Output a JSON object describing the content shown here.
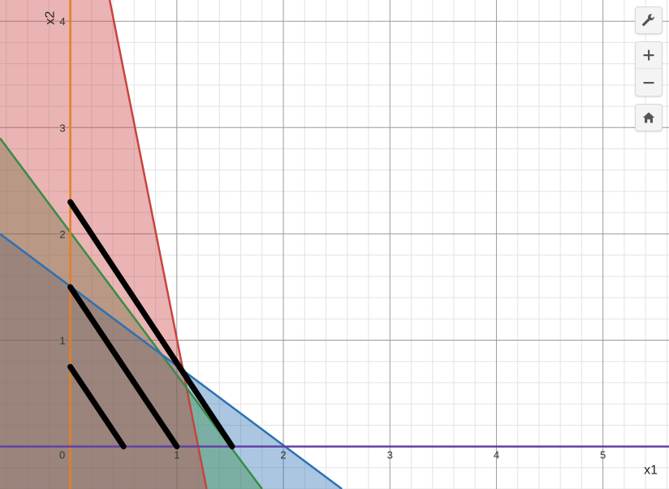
{
  "graph": {
    "x_axis_label": "x1",
    "y_axis_label": "x2",
    "x_range": [
      -0.66,
      5.62
    ],
    "y_range": [
      -0.4,
      4.2
    ],
    "x_ticks": [
      {
        "value": 0,
        "label": "0"
      },
      {
        "value": 1,
        "label": "1"
      },
      {
        "value": 2,
        "label": "2"
      },
      {
        "value": 3,
        "label": "3"
      },
      {
        "value": 4,
        "label": "4"
      },
      {
        "value": 5,
        "label": "5"
      }
    ],
    "y_ticks": [
      {
        "value": 1,
        "label": "1"
      },
      {
        "value": 2,
        "label": "2"
      },
      {
        "value": 3,
        "label": "3"
      },
      {
        "value": 4,
        "label": "4"
      }
    ],
    "minor_grid_step": 0.2,
    "regions": [
      {
        "id": "blue",
        "color": "#2d70b3",
        "points": [
          [
            -0.66,
            2.0
          ],
          [
            2.55,
            -0.4
          ],
          [
            -0.66,
            -0.4
          ]
        ]
      },
      {
        "id": "green",
        "color": "#388c46",
        "points": [
          [
            -0.66,
            2.9
          ],
          [
            1.8,
            -0.4
          ],
          [
            -0.66,
            -0.4
          ]
        ]
      },
      {
        "id": "red",
        "color": "#c74440",
        "points": [
          [
            -0.66,
            4.2
          ],
          [
            0.37,
            4.2
          ],
          [
            1.28,
            -0.4
          ],
          [
            -0.66,
            -0.4
          ]
        ]
      }
    ],
    "boundary_lines": [
      {
        "id": "red-boundary",
        "color": "#c74440",
        "points": [
          [
            0.37,
            4.2
          ],
          [
            1.28,
            -0.4
          ]
        ]
      },
      {
        "id": "green-boundary",
        "color": "#388c46",
        "points": [
          [
            -0.66,
            2.9
          ],
          [
            1.8,
            -0.4
          ]
        ]
      },
      {
        "id": "blue-boundary",
        "color": "#2d70b3",
        "points": [
          [
            -0.66,
            2.0
          ],
          [
            2.55,
            -0.4
          ]
        ]
      }
    ],
    "constraint_axes": [
      {
        "id": "vertical-constraint",
        "color": "#e67e22",
        "points": [
          [
            0,
            -0.4
          ],
          [
            0,
            4.2
          ]
        ]
      },
      {
        "id": "horizontal-constraint",
        "color": "#6042a6",
        "points": [
          [
            -0.66,
            0
          ],
          [
            5.62,
            0
          ]
        ]
      }
    ],
    "objective_lines": [
      {
        "id": "objective-line-1",
        "points": [
          [
            0,
            0.75
          ],
          [
            0.5,
            0
          ]
        ]
      },
      {
        "id": "objective-line-2",
        "points": [
          [
            0,
            1.5
          ],
          [
            1.0,
            0
          ]
        ]
      },
      {
        "id": "objective-line-3",
        "points": [
          [
            0,
            2.3
          ],
          [
            1.52,
            0
          ]
        ]
      }
    ]
  },
  "toolbar": {
    "settings_icon": "wrench-icon",
    "zoom_in_icon": "plus-icon",
    "zoom_out_icon": "minus-icon",
    "home_icon": "home-icon"
  }
}
